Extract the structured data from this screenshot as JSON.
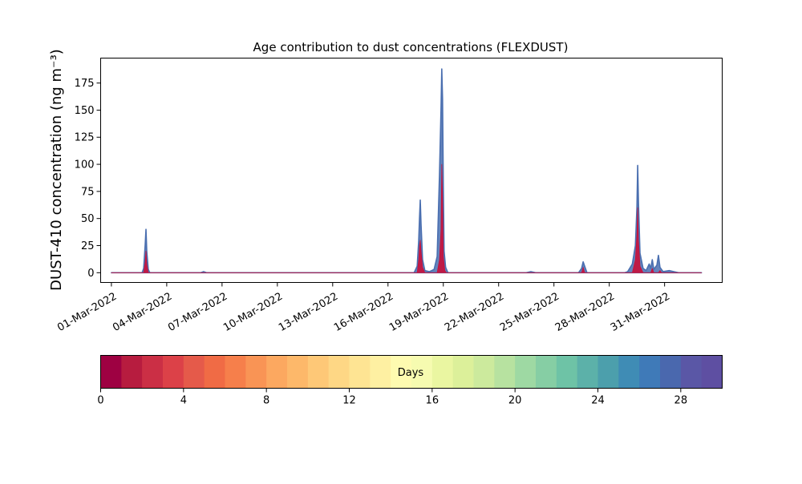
{
  "chart_data": {
    "type": "area",
    "title": "Age contribution to dust concentrations (FLEXDUST)",
    "ylabel": "DUST-410 concentration (ng m⁻³)",
    "xlabel": "",
    "x_ticks": [
      "01-Mar-2022",
      "04-Mar-2022",
      "07-Mar-2022",
      "10-Mar-2022",
      "13-Mar-2022",
      "16-Mar-2022",
      "19-Mar-2022",
      "22-Mar-2022",
      "25-Mar-2022",
      "28-Mar-2022",
      "31-Mar-2022"
    ],
    "y_ticks": [
      "0",
      "25",
      "50",
      "75",
      "100",
      "125",
      "150",
      "175"
    ],
    "xlim": [
      "2022-02-28T10:00",
      "2022-04-03T03:00"
    ],
    "ylim": [
      -9,
      198
    ],
    "x_range_data": [
      "2022-03-01T00:00",
      "2022-04-02T00:00"
    ],
    "grid": false,
    "series": [
      {
        "role": "total",
        "color": "#4a6fb0",
        "points": [
          [
            "2022-03-01T00:00",
            0
          ],
          [
            "2022-03-02T16:00",
            0
          ],
          [
            "2022-03-02T18:00",
            4
          ],
          [
            "2022-03-02T20:00",
            26
          ],
          [
            "2022-03-02T21:00",
            40
          ],
          [
            "2022-03-02T22:00",
            20
          ],
          [
            "2022-03-03T00:00",
            3
          ],
          [
            "2022-03-03T02:00",
            0
          ],
          [
            "2022-03-05T20:00",
            0
          ],
          [
            "2022-03-06T00:00",
            1
          ],
          [
            "2022-03-06T04:00",
            0
          ],
          [
            "2022-03-17T10:00",
            0
          ],
          [
            "2022-03-17T14:00",
            6
          ],
          [
            "2022-03-17T16:00",
            30
          ],
          [
            "2022-03-17T17:00",
            50
          ],
          [
            "2022-03-17T18:00",
            67
          ],
          [
            "2022-03-17T19:00",
            45
          ],
          [
            "2022-03-17T21:00",
            12
          ],
          [
            "2022-03-18T00:00",
            2
          ],
          [
            "2022-03-18T06:00",
            1
          ],
          [
            "2022-03-18T12:00",
            3
          ],
          [
            "2022-03-18T16:00",
            15
          ],
          [
            "2022-03-18T19:00",
            90
          ],
          [
            "2022-03-18T21:00",
            150
          ],
          [
            "2022-03-18T22:00",
            188
          ],
          [
            "2022-03-18T23:00",
            160
          ],
          [
            "2022-03-19T00:00",
            80
          ],
          [
            "2022-03-19T01:00",
            20
          ],
          [
            "2022-03-19T03:00",
            5
          ],
          [
            "2022-03-19T06:00",
            0
          ],
          [
            "2022-03-23T12:00",
            0
          ],
          [
            "2022-03-23T18:00",
            1
          ],
          [
            "2022-03-24T00:00",
            0
          ],
          [
            "2022-03-26T08:00",
            0
          ],
          [
            "2022-03-26T12:00",
            4
          ],
          [
            "2022-03-26T14:00",
            10
          ],
          [
            "2022-03-26T16:00",
            6
          ],
          [
            "2022-03-26T19:00",
            0
          ],
          [
            "2022-03-28T20:00",
            0
          ],
          [
            "2022-03-29T00:00",
            1
          ],
          [
            "2022-03-29T06:00",
            8
          ],
          [
            "2022-03-29T10:00",
            25
          ],
          [
            "2022-03-29T12:00",
            60
          ],
          [
            "2022-03-29T13:00",
            99
          ],
          [
            "2022-03-29T14:00",
            65
          ],
          [
            "2022-03-29T16:00",
            18
          ],
          [
            "2022-03-29T20:00",
            4
          ],
          [
            "2022-03-30T00:00",
            2
          ],
          [
            "2022-03-30T04:00",
            8
          ],
          [
            "2022-03-30T06:00",
            4
          ],
          [
            "2022-03-30T08:00",
            12
          ],
          [
            "2022-03-30T10:00",
            3
          ],
          [
            "2022-03-30T14:00",
            7
          ],
          [
            "2022-03-30T16:00",
            16
          ],
          [
            "2022-03-30T18:00",
            5
          ],
          [
            "2022-03-30T22:00",
            1
          ],
          [
            "2022-03-31T06:00",
            2
          ],
          [
            "2022-03-31T12:00",
            1
          ],
          [
            "2022-03-31T18:00",
            0
          ],
          [
            "2022-04-02T00:00",
            0
          ]
        ]
      },
      {
        "role": "young",
        "color": "#c8103a",
        "points": [
          [
            "2022-03-01T00:00",
            0
          ],
          [
            "2022-03-02T18:00",
            0
          ],
          [
            "2022-03-02T20:00",
            10
          ],
          [
            "2022-03-02T21:00",
            20
          ],
          [
            "2022-03-02T22:00",
            8
          ],
          [
            "2022-03-03T00:00",
            0
          ],
          [
            "2022-03-17T14:00",
            0
          ],
          [
            "2022-03-17T16:00",
            12
          ],
          [
            "2022-03-17T17:00",
            25
          ],
          [
            "2022-03-17T18:00",
            30
          ],
          [
            "2022-03-17T19:00",
            20
          ],
          [
            "2022-03-17T21:00",
            5
          ],
          [
            "2022-03-18T00:00",
            0
          ],
          [
            "2022-03-18T16:00",
            0
          ],
          [
            "2022-03-18T19:00",
            12
          ],
          [
            "2022-03-18T21:00",
            40
          ],
          [
            "2022-03-18T22:00",
            100
          ],
          [
            "2022-03-18T23:00",
            70
          ],
          [
            "2022-03-19T00:00",
            15
          ],
          [
            "2022-03-19T02:00",
            2
          ],
          [
            "2022-03-19T04:00",
            0
          ],
          [
            "2022-03-26T12:00",
            0
          ],
          [
            "2022-03-26T14:00",
            5
          ],
          [
            "2022-03-26T16:00",
            0
          ],
          [
            "2022-03-29T06:00",
            0
          ],
          [
            "2022-03-29T10:00",
            12
          ],
          [
            "2022-03-29T12:00",
            35
          ],
          [
            "2022-03-29T13:00",
            60
          ],
          [
            "2022-03-29T14:00",
            30
          ],
          [
            "2022-03-29T16:00",
            6
          ],
          [
            "2022-03-29T20:00",
            0
          ],
          [
            "2022-03-30T06:00",
            0
          ],
          [
            "2022-03-30T08:00",
            4
          ],
          [
            "2022-03-30T10:00",
            0
          ],
          [
            "2022-03-30T16:00",
            0
          ],
          [
            "2022-03-30T18:00",
            2
          ],
          [
            "2022-03-30T20:00",
            0
          ],
          [
            "2022-04-02T00:00",
            0
          ]
        ]
      }
    ],
    "colorbar": {
      "label": "Days",
      "min": 0,
      "max": 30,
      "ticks": [
        "0",
        "4",
        "8",
        "12",
        "16",
        "20",
        "24",
        "28"
      ],
      "colors": [
        "#9e0142",
        "#b71c3f",
        "#cb2f45",
        "#dc4148",
        "#e55a4a",
        "#f06b45",
        "#f67f4b",
        "#f99455",
        "#fca860",
        "#fdb86a",
        "#fec877",
        "#fed785",
        "#fee493",
        "#fef0a2",
        "#fefbb0",
        "#f6fbb0",
        "#eaf6a1",
        "#dcf09a",
        "#ccea9d",
        "#b7e2a0",
        "#9ed9a3",
        "#86cea4",
        "#6ec3a6",
        "#5cb1a9",
        "#4c9fac",
        "#3f8cb5",
        "#3f7ab8",
        "#4a68ae",
        "#5a57a6",
        "#5e4fa2"
      ]
    }
  }
}
